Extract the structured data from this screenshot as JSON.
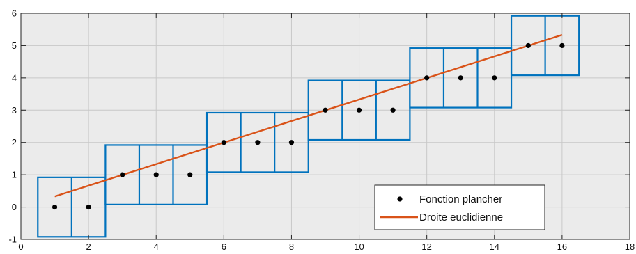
{
  "chart_data": {
    "type": "scatter",
    "title": "",
    "xlabel": "",
    "ylabel": "",
    "xlim": [
      0,
      18
    ],
    "ylim": [
      -1,
      6
    ],
    "x_ticks": [
      0,
      2,
      4,
      6,
      8,
      10,
      12,
      14,
      16,
      18
    ],
    "y_ticks": [
      -1,
      0,
      1,
      2,
      3,
      4,
      5,
      6
    ],
    "grid": true,
    "legend_position": "bottom-right",
    "series": [
      {
        "name": "Fonction plancher",
        "kind": "points",
        "color": "#000000",
        "x": [
          1,
          2,
          3,
          4,
          5,
          6,
          7,
          8,
          9,
          10,
          11,
          12,
          13,
          14,
          15,
          16
        ],
        "y": [
          0,
          0,
          1,
          1,
          1,
          2,
          2,
          2,
          3,
          3,
          3,
          4,
          4,
          4,
          5,
          5
        ]
      },
      {
        "name": "Droite euclidienne",
        "kind": "line",
        "color": "#d95319",
        "x": [
          1,
          16
        ],
        "y": [
          0.33,
          5.33
        ]
      }
    ],
    "boxes": {
      "color": "#0072bd",
      "items": [
        {
          "x": [
            0.5,
            2.5
          ],
          "y": [
            -0.92,
            0.92
          ],
          "dividers": [
            1.5
          ]
        },
        {
          "x": [
            2.5,
            5.5
          ],
          "y": [
            0.08,
            1.92
          ],
          "dividers": [
            3.5,
            4.5
          ]
        },
        {
          "x": [
            5.5,
            8.5
          ],
          "y": [
            1.08,
            2.92
          ],
          "dividers": [
            6.5,
            7.5
          ]
        },
        {
          "x": [
            8.5,
            11.5
          ],
          "y": [
            2.08,
            3.92
          ],
          "dividers": [
            9.5,
            10.5
          ]
        },
        {
          "x": [
            11.5,
            14.5
          ],
          "y": [
            3.08,
            4.92
          ],
          "dividers": [
            12.5,
            13.5
          ]
        },
        {
          "x": [
            14.5,
            16.5
          ],
          "y": [
            4.08,
            5.92
          ],
          "dividers": [
            15.5
          ]
        }
      ]
    },
    "colors": {
      "plot_background": "#ebebeb",
      "grid": "#c8c8c8",
      "axis": "#222222"
    }
  },
  "legend": {
    "items": [
      {
        "label": "Fonction plancher"
      },
      {
        "label": "Droite euclidienne"
      }
    ]
  }
}
